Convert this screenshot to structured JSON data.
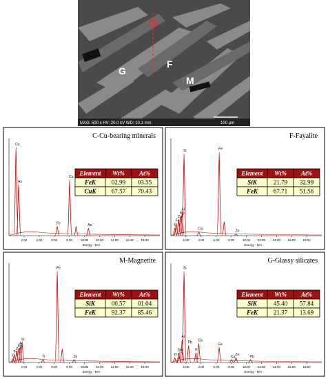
{
  "image": {
    "labels": [
      "C",
      "G",
      "F",
      "M"
    ],
    "info": "MAG: 500 x  HV: 20.0 kV  WD: 10.1 mm",
    "scale": "100 µm"
  },
  "chart_data": [
    {
      "type": "spectrum",
      "title": "C-Cu-bearing minerals",
      "x_label": "Energy - keV",
      "xlim": [
        0,
        20
      ],
      "ylim": [
        0,
        100
      ],
      "color": "#c00000",
      "xticks": [
        {
          "value": 2,
          "label": "2.00"
        },
        {
          "value": 4,
          "label": "4.00"
        },
        {
          "value": 6,
          "label": "6.00"
        },
        {
          "value": 8,
          "label": "8.00"
        },
        {
          "value": 10,
          "label": "10.00"
        },
        {
          "value": 12,
          "label": "12.00"
        },
        {
          "value": 14,
          "label": "14.00"
        },
        {
          "value": 16,
          "label": "16.00"
        },
        {
          "value": 18,
          "label": "18.00"
        }
      ],
      "peaks": [
        {
          "label": "Cu",
          "energy": 0.93,
          "height": 95
        },
        {
          "label": "As",
          "energy": 1.28,
          "height": 55
        },
        {
          "label": "Fe",
          "energy": 6.4,
          "height": 10
        },
        {
          "label": "Cu",
          "energy": 8.04,
          "height": 60
        },
        {
          "label": null,
          "energy": 8.9,
          "height": 10
        },
        {
          "label": "As",
          "energy": 10.53,
          "height": 8
        }
      ],
      "table": {
        "header": [
          "Element",
          "Wt%",
          "At%"
        ],
        "rows": [
          [
            "FeK",
            "02.99",
            "03.55"
          ],
          [
            "CuK",
            "67.57",
            "70.43"
          ]
        ]
      }
    },
    {
      "type": "spectrum",
      "title": "F-Fayalite",
      "x_label": "Energy - keV",
      "xlim": [
        0,
        20
      ],
      "ylim": [
        0,
        100
      ],
      "color": "#c00000",
      "xticks": [
        {
          "value": 2,
          "label": "2.00"
        },
        {
          "value": 4,
          "label": "4.00"
        },
        {
          "value": 6,
          "label": "6.00"
        },
        {
          "value": 8,
          "label": "8.00"
        },
        {
          "value": 10,
          "label": "10.00"
        },
        {
          "value": 12,
          "label": "12.00"
        },
        {
          "value": 14,
          "label": "14.00"
        },
        {
          "value": 16,
          "label": "16.00"
        },
        {
          "value": 18,
          "label": "18.00"
        }
      ],
      "peaks": [
        {
          "label": "O",
          "energy": 0.52,
          "height": 8
        },
        {
          "label": "Fe",
          "energy": 0.7,
          "height": 13
        },
        {
          "label": "Zn",
          "energy": 1.01,
          "height": 17
        },
        {
          "label": "Mg",
          "energy": 1.25,
          "height": 21
        },
        {
          "label": "Al",
          "energy": 1.49,
          "height": 25
        },
        {
          "label": "Si",
          "energy": 1.74,
          "height": 88
        },
        {
          "label": "Ca",
          "energy": 3.69,
          "height": 4
        },
        {
          "label": "Fe",
          "energy": 6.4,
          "height": 90
        },
        {
          "label": null,
          "energy": 7.06,
          "height": 15
        },
        {
          "label": "Zn",
          "energy": 8.63,
          "height": 2
        }
      ],
      "table": {
        "header": [
          "Element",
          "Wt%",
          "At%"
        ],
        "rows": [
          [
            "SiK",
            "21.79",
            "32.99"
          ],
          [
            "FeK",
            "67.71",
            "51.56"
          ]
        ]
      }
    },
    {
      "type": "spectrum",
      "title": "M-Magnetite",
      "x_label": "Energy - keV",
      "xlim": [
        0,
        20
      ],
      "ylim": [
        0,
        100
      ],
      "color": "#c00000",
      "xticks": [
        {
          "value": 2,
          "label": "2.00"
        },
        {
          "value": 4,
          "label": "4.00"
        },
        {
          "value": 6,
          "label": "6.00"
        },
        {
          "value": 8,
          "label": "8.00"
        },
        {
          "value": 10,
          "label": "10.00"
        },
        {
          "value": 12,
          "label": "12.00"
        },
        {
          "value": 14,
          "label": "14.00"
        },
        {
          "value": 16,
          "label": "16.00"
        },
        {
          "value": 18,
          "label": "18.00"
        }
      ],
      "peaks": [
        {
          "label": "O",
          "energy": 0.52,
          "height": 4
        },
        {
          "label": "Fe",
          "energy": 0.7,
          "height": 8
        },
        {
          "label": "Zn",
          "energy": 1.01,
          "height": 11
        },
        {
          "label": "Mg",
          "energy": 1.25,
          "height": 14
        },
        {
          "label": "Al",
          "energy": 1.49,
          "height": 17
        },
        {
          "label": "Si",
          "energy": 1.74,
          "height": 21
        },
        {
          "label": "Ti",
          "energy": 4.51,
          "height": 3
        },
        {
          "label": "Fe",
          "energy": 6.4,
          "height": 96
        },
        {
          "label": null,
          "energy": 7.06,
          "height": 14
        },
        {
          "label": "Zn",
          "energy": 8.63,
          "height": 3
        }
      ],
      "table": {
        "header": [
          "Element",
          "Wt%",
          "At%"
        ],
        "rows": [
          [
            "SiK",
            "00.57",
            "01.04"
          ],
          [
            "FeK",
            "92.37",
            "85.46"
          ]
        ]
      }
    },
    {
      "type": "spectrum",
      "title": "G-Glassy silicates",
      "x_label": "Energy - keV",
      "xlim": [
        0,
        20
      ],
      "ylim": [
        0,
        100
      ],
      "color": "#c00000",
      "xticks": [
        {
          "value": 2,
          "label": "2.00"
        },
        {
          "value": 4,
          "label": "4.00"
        },
        {
          "value": 6,
          "label": "6.00"
        },
        {
          "value": 8,
          "label": "8.00"
        },
        {
          "value": 10,
          "label": "10.00"
        },
        {
          "value": 12,
          "label": "12.00"
        },
        {
          "value": 14,
          "label": "14.00"
        },
        {
          "value": 16,
          "label": "16.00"
        },
        {
          "value": 18,
          "label": "18.00"
        }
      ],
      "peaks": [
        {
          "label": "O",
          "energy": 0.52,
          "height": 5
        },
        {
          "label": "Na",
          "energy": 1.04,
          "height": 10
        },
        {
          "label": "Zn",
          "energy": 1.1,
          "height": 6
        },
        {
          "label": "Al",
          "energy": 1.49,
          "height": 24
        },
        {
          "label": "Si",
          "energy": 1.74,
          "height": 96
        },
        {
          "label": "Pb",
          "energy": 2.34,
          "height": 18
        },
        {
          "label": "K",
          "energy": 3.31,
          "height": 10
        },
        {
          "label": "Ca",
          "energy": 3.69,
          "height": 20
        },
        {
          "label": "Fe",
          "energy": 6.4,
          "height": 16
        },
        {
          "label": "Cu",
          "energy": 8.04,
          "height": 3
        },
        {
          "label": "Zn",
          "energy": 8.63,
          "height": 5
        },
        {
          "label": "Pb",
          "energy": 10.55,
          "height": 3
        }
      ],
      "table": {
        "header": [
          "Element",
          "Wt%",
          "At%"
        ],
        "rows": [
          [
            "SiK",
            "45.40",
            "57.84"
          ],
          [
            "FeK",
            "21.37",
            "13.69"
          ]
        ]
      }
    }
  ]
}
